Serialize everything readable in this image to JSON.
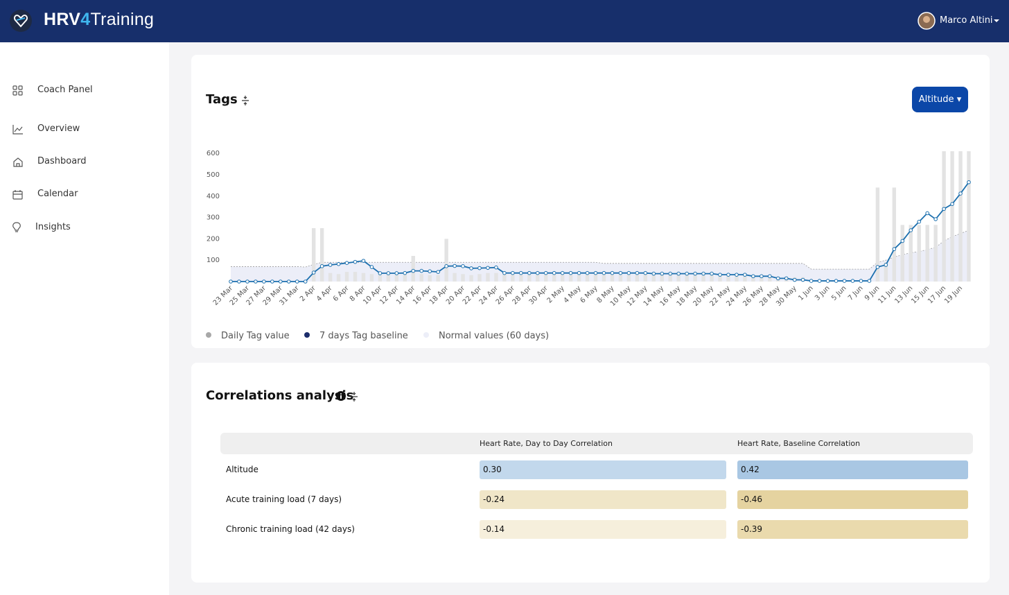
{
  "header": {
    "brand": [
      "HRV",
      "4",
      "Training"
    ],
    "user": "Marco Altini"
  },
  "sidebar": [
    "Coach Panel",
    "Overview",
    "Dashboard",
    "Calendar",
    "Insights"
  ],
  "tags_card": {
    "title": "Tags",
    "button": "Altitude"
  },
  "chart_data": {
    "type": "combo",
    "categories": [
      "23 Mar",
      null,
      "25 Mar",
      null,
      "27 Mar",
      null,
      "29 Mar",
      null,
      "31 Mar",
      null,
      "2 Apr",
      null,
      "4 Apr",
      null,
      "6 Apr",
      null,
      "8 Apr",
      null,
      "10 Apr",
      null,
      "12 Apr",
      null,
      "14 Apr",
      null,
      "16 Apr",
      null,
      "18 Apr",
      null,
      "20 Apr",
      null,
      "22 Apr",
      null,
      "24 Apr",
      null,
      "26 Apr",
      null,
      "28 Apr",
      null,
      "30 Apr",
      null,
      "2 May",
      null,
      "4 May",
      null,
      "6 May",
      null,
      "8 May",
      null,
      "10 May",
      null,
      "12 May",
      null,
      "14 May",
      null,
      "16 May",
      null,
      "18 May",
      null,
      "20 May",
      null,
      "22 May",
      null,
      "24 May",
      null,
      "26 May",
      null,
      "28 May",
      null,
      "30 May",
      null,
      "1 Jun",
      null,
      "3 Jun",
      null,
      "5 Jun",
      null,
      "7 Jun",
      null,
      "9 Jun",
      null,
      "11 Jun",
      null,
      "13 Jun",
      null,
      "15 Jun",
      null,
      "17 Jun",
      null,
      "19 Jun",
      null
    ],
    "series": [
      {
        "name": "Daily Tag value",
        "type": "bar",
        "color": "#e3e3e3",
        "legend_color": "#a8a8a8",
        "values": [
          0,
          0,
          0,
          0,
          0,
          0,
          0,
          0,
          0,
          0,
          250,
          250,
          40,
          35,
          45,
          45,
          40,
          35,
          40,
          35,
          38,
          35,
          120,
          35,
          30,
          30,
          200,
          40,
          35,
          30,
          35,
          40,
          40,
          38,
          40,
          35,
          35,
          35,
          35,
          35,
          35,
          35,
          35,
          35,
          35,
          35,
          35,
          35,
          35,
          35,
          35,
          35,
          35,
          35,
          35,
          35,
          30,
          30,
          30,
          30,
          30,
          30,
          30,
          30,
          30,
          30,
          20,
          20,
          20,
          20,
          0,
          0,
          0,
          0,
          0,
          0,
          0,
          0,
          440,
          90,
          440,
          265,
          265,
          265,
          265,
          265,
          610,
          610,
          610,
          610
        ]
      },
      {
        "name": "7 days Tag baseline",
        "type": "line",
        "color": "#1b6fae",
        "legend_color": "#1c2d6b",
        "values": [
          0,
          0,
          0,
          0,
          0,
          0,
          0,
          0,
          0,
          0,
          42,
          72,
          78,
          82,
          87,
          92,
          97,
          68,
          39,
          39,
          39,
          40,
          50,
          50,
          48,
          45,
          72,
          73,
          72,
          62,
          63,
          64,
          66,
          40,
          40,
          40,
          40,
          40,
          40,
          40,
          40,
          40,
          40,
          40,
          40,
          40,
          40,
          40,
          40,
          40,
          40,
          37,
          37,
          37,
          37,
          37,
          37,
          37,
          37,
          32,
          32,
          32,
          32,
          25,
          25,
          25,
          15,
          15,
          8,
          8,
          3,
          3,
          3,
          3,
          3,
          3,
          3,
          3,
          68,
          78,
          152,
          190,
          240,
          280,
          320,
          292,
          340,
          363,
          412,
          465
        ]
      },
      {
        "name": "Normal values (60 days)",
        "type": "area",
        "color": "#dfe3f3",
        "legend_color": "#eceef8",
        "values": [
          70,
          70,
          70,
          70,
          70,
          70,
          70,
          70,
          70,
          68,
          80,
          90,
          90,
          90,
          90,
          90,
          90,
          90,
          90,
          90,
          90,
          90,
          90,
          90,
          90,
          90,
          90,
          90,
          90,
          90,
          90,
          90,
          90,
          90,
          90,
          90,
          90,
          90,
          90,
          90,
          90,
          90,
          90,
          90,
          90,
          85,
          85,
          85,
          85,
          85,
          85,
          85,
          85,
          85,
          85,
          85,
          85,
          85,
          85,
          85,
          85,
          85,
          85,
          85,
          85,
          85,
          85,
          85,
          85,
          85,
          58,
          58,
          58,
          58,
          58,
          58,
          58,
          58,
          90,
          100,
          115,
          125,
          135,
          140,
          150,
          160,
          190,
          210,
          225,
          240
        ]
      }
    ],
    "ylim": [
      0,
      620
    ],
    "yticks": [
      100,
      200,
      300,
      400,
      500,
      600
    ],
    "grid": false
  },
  "correlations": {
    "title": "Correlations analysis",
    "columns": [
      "Heart Rate, Day to Day Correlation",
      "Heart Rate, Baseline Correlation"
    ],
    "rows": [
      {
        "label": "Altitude",
        "cells": [
          {
            "value": "0.30",
            "color": "#c2d8ec"
          },
          {
            "value": "0.42",
            "color": "#a9c7e3"
          }
        ]
      },
      {
        "label": "Acute training load (7 days)",
        "cells": [
          {
            "value": "-0.24",
            "color": "#f0e6c8"
          },
          {
            "value": "-0.46",
            "color": "#e5d3a0"
          }
        ]
      },
      {
        "label": "Chronic training load (42 days)",
        "cells": [
          {
            "value": "-0.14",
            "color": "#f6efdc"
          },
          {
            "value": "-0.39",
            "color": "#eadaad"
          }
        ]
      }
    ]
  }
}
